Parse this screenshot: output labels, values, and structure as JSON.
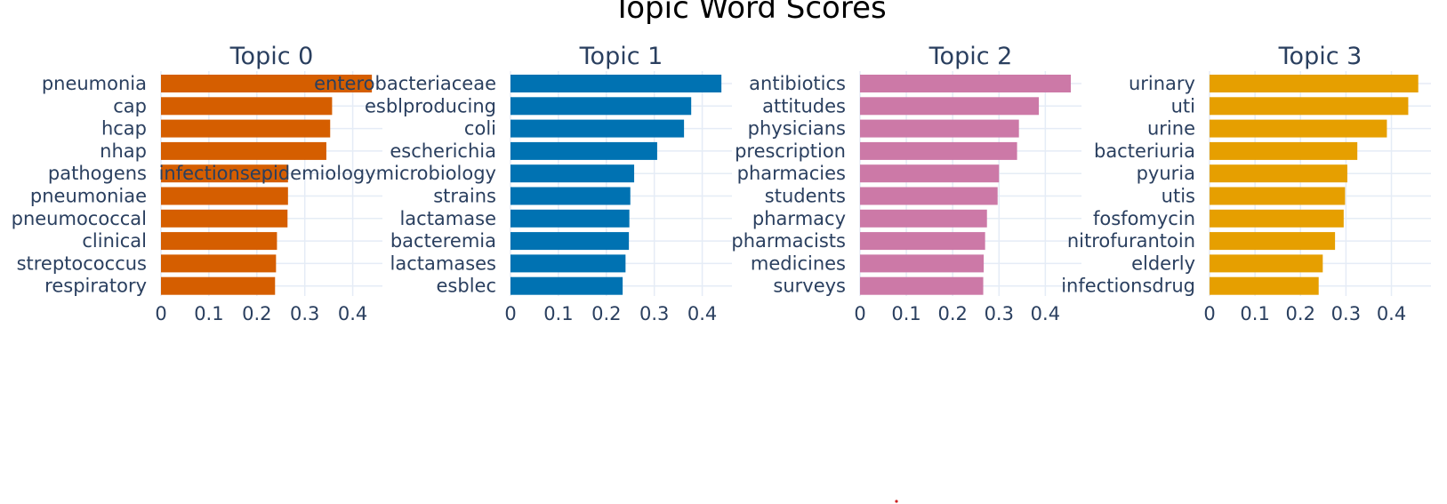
{
  "title": "Topic Word Scores",
  "chart_data": [
    {
      "type": "bar",
      "orientation": "horizontal",
      "title": "Topic 0",
      "color": "#D55E00",
      "categories": [
        "pneumonia",
        "cap",
        "hcap",
        "nhap",
        "pathogens",
        "pneumoniae",
        "pneumococcal",
        "clinical",
        "streptococcus",
        "respiratory"
      ],
      "values": [
        0.44,
        0.357,
        0.353,
        0.345,
        0.265,
        0.265,
        0.264,
        0.242,
        0.24,
        0.238
      ],
      "xticks": [
        "0",
        "0.1",
        "0.2",
        "0.3",
        "0.4"
      ],
      "xlim": [
        0,
        0.462
      ],
      "grid": true
    },
    {
      "type": "bar",
      "orientation": "horizontal",
      "title": "Topic 1",
      "color": "#0072B2",
      "categories": [
        "enterobacteriaceae",
        "esblproducing",
        "coli",
        "escherichia",
        "infectionsepidemiologymicrobiology",
        "strains",
        "lactamase",
        "bacteremia",
        "lactamases",
        "esblec"
      ],
      "values": [
        0.44,
        0.377,
        0.362,
        0.306,
        0.258,
        0.25,
        0.248,
        0.247,
        0.24,
        0.234
      ],
      "xticks": [
        "0",
        "0.1",
        "0.2",
        "0.3",
        "0.4"
      ],
      "xlim": [
        0,
        0.462
      ],
      "grid": true
    },
    {
      "type": "bar",
      "orientation": "horizontal",
      "title": "Topic 2",
      "color": "#CC79A7",
      "categories": [
        "antibiotics",
        "attitudes",
        "physicians",
        "prescription",
        "pharmacies",
        "students",
        "pharmacy",
        "pharmacists",
        "medicines",
        "surveys"
      ],
      "values": [
        0.455,
        0.386,
        0.343,
        0.339,
        0.3,
        0.297,
        0.274,
        0.27,
        0.267,
        0.266
      ],
      "xticks": [
        "0",
        "0.1",
        "0.2",
        "0.3",
        "0.4"
      ],
      "xlim": [
        0,
        0.478
      ],
      "grid": true
    },
    {
      "type": "bar",
      "orientation": "horizontal",
      "title": "Topic 3",
      "color": "#E69F00",
      "categories": [
        "urinary",
        "uti",
        "urine",
        "bacteriuria",
        "pyuria",
        "utis",
        "fosfomycin",
        "nitrofurantoin",
        "elderly",
        "infectionsdrug"
      ],
      "values": [
        0.459,
        0.437,
        0.39,
        0.325,
        0.303,
        0.298,
        0.295,
        0.276,
        0.249,
        0.24
      ],
      "xticks": [
        "0",
        "0.1",
        "0.2",
        "0.3",
        "0.4"
      ],
      "xlim": [
        0,
        0.487
      ],
      "grid": true
    }
  ]
}
